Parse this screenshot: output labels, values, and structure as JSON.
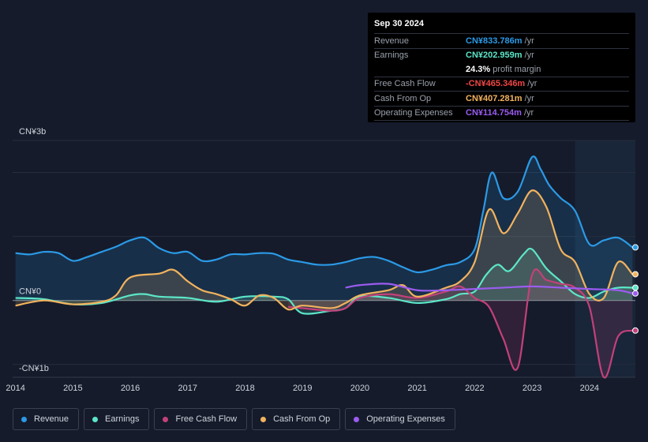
{
  "tooltip": {
    "date": "Sep 30 2024",
    "rows": [
      {
        "label": "Revenue",
        "value": "CN¥833.786m",
        "unit": "/yr",
        "color": "#2b9ae6"
      },
      {
        "label": "Earnings",
        "value": "CN¥202.959m",
        "unit": "/yr",
        "color": "#5ce6c8"
      },
      {
        "label": "",
        "value": "24.3%",
        "unit": "profit margin",
        "color": "#ffffff"
      },
      {
        "label": "Free Cash Flow",
        "value": "-CN¥465.346m",
        "unit": "/yr",
        "color": "#f04646"
      },
      {
        "label": "Cash From Op",
        "value": "CN¥407.281m",
        "unit": "/yr",
        "color": "#f2b35e"
      },
      {
        "label": "Operating Expenses",
        "value": "CN¥114.754m",
        "unit": "/yr",
        "color": "#9b5cf0"
      }
    ]
  },
  "chart_data": {
    "type": "line",
    "title": "",
    "xlabel": "",
    "ylabel": "",
    "y_unit": "CN¥ billions",
    "ylim": [
      -1.2,
      2.5
    ],
    "y_ticks": [
      {
        "value": 2.5,
        "label": "CN¥3b"
      },
      {
        "value": 0,
        "label": "CN¥0"
      },
      {
        "value": -1.2,
        "label": "-CN¥1b"
      }
    ],
    "xlim": [
      2013.95,
      2024.8
    ],
    "x_ticks": [
      {
        "value": 2014,
        "label": "2014"
      },
      {
        "value": 2015,
        "label": "2015"
      },
      {
        "value": 2016,
        "label": "2016"
      },
      {
        "value": 2017,
        "label": "2017"
      },
      {
        "value": 2018,
        "label": "2018"
      },
      {
        "value": 2019,
        "label": "2019"
      },
      {
        "value": 2020,
        "label": "2020"
      },
      {
        "value": 2021,
        "label": "2021"
      },
      {
        "value": 2022,
        "label": "2022"
      },
      {
        "value": 2023,
        "label": "2023"
      },
      {
        "value": 2024,
        "label": "2024"
      }
    ],
    "forecast_start": 2023.75,
    "series": [
      {
        "name": "Revenue",
        "color": "#2b9ae6",
        "fill": true,
        "points": [
          [
            2014,
            0.74
          ],
          [
            2014.25,
            0.72
          ],
          [
            2014.5,
            0.76
          ],
          [
            2014.75,
            0.74
          ],
          [
            2015,
            0.62
          ],
          [
            2015.25,
            0.68
          ],
          [
            2015.5,
            0.76
          ],
          [
            2015.75,
            0.84
          ],
          [
            2016,
            0.94
          ],
          [
            2016.25,
            0.98
          ],
          [
            2016.5,
            0.82
          ],
          [
            2016.75,
            0.74
          ],
          [
            2017,
            0.76
          ],
          [
            2017.25,
            0.62
          ],
          [
            2017.5,
            0.64
          ],
          [
            2017.75,
            0.72
          ],
          [
            2018,
            0.72
          ],
          [
            2018.25,
            0.74
          ],
          [
            2018.5,
            0.73
          ],
          [
            2018.75,
            0.64
          ],
          [
            2019,
            0.6
          ],
          [
            2019.25,
            0.56
          ],
          [
            2019.5,
            0.56
          ],
          [
            2019.75,
            0.6
          ],
          [
            2020,
            0.66
          ],
          [
            2020.25,
            0.68
          ],
          [
            2020.5,
            0.62
          ],
          [
            2020.75,
            0.52
          ],
          [
            2021,
            0.44
          ],
          [
            2021.25,
            0.48
          ],
          [
            2021.5,
            0.55
          ],
          [
            2021.75,
            0.6
          ],
          [
            2022,
            0.8
          ],
          [
            2022.15,
            1.4
          ],
          [
            2022.3,
            2.0
          ],
          [
            2022.5,
            1.6
          ],
          [
            2022.75,
            1.7
          ],
          [
            2023,
            2.24
          ],
          [
            2023.15,
            2.05
          ],
          [
            2023.3,
            1.8
          ],
          [
            2023.5,
            1.6
          ],
          [
            2023.75,
            1.4
          ],
          [
            2024,
            0.88
          ],
          [
            2024.25,
            0.94
          ],
          [
            2024.5,
            0.98
          ],
          [
            2024.75,
            0.83
          ]
        ]
      },
      {
        "name": "Earnings",
        "color": "#5ce6c8",
        "fill": true,
        "points": [
          [
            2014,
            0.04
          ],
          [
            2014.5,
            0.02
          ],
          [
            2015,
            -0.06
          ],
          [
            2015.5,
            -0.04
          ],
          [
            2016,
            0.08
          ],
          [
            2016.25,
            0.1
          ],
          [
            2016.5,
            0.06
          ],
          [
            2017,
            0.04
          ],
          [
            2017.5,
            -0.02
          ],
          [
            2018,
            0.06
          ],
          [
            2018.5,
            0.06
          ],
          [
            2018.75,
            0.02
          ],
          [
            2019,
            -0.2
          ],
          [
            2019.5,
            -0.16
          ],
          [
            2019.75,
            -0.12
          ],
          [
            2020,
            0.06
          ],
          [
            2020.5,
            0.04
          ],
          [
            2021,
            -0.04
          ],
          [
            2021.5,
            0.02
          ],
          [
            2021.75,
            0.1
          ],
          [
            2022,
            0.14
          ],
          [
            2022.2,
            0.4
          ],
          [
            2022.4,
            0.56
          ],
          [
            2022.6,
            0.46
          ],
          [
            2022.85,
            0.72
          ],
          [
            2023,
            0.8
          ],
          [
            2023.25,
            0.5
          ],
          [
            2023.5,
            0.3
          ],
          [
            2023.75,
            0.1
          ],
          [
            2024,
            0.04
          ],
          [
            2024.25,
            0.14
          ],
          [
            2024.5,
            0.2
          ],
          [
            2024.75,
            0.2
          ]
        ]
      },
      {
        "name": "Free Cash Flow",
        "color": "#c2417a",
        "fill": true,
        "points": [
          [
            2018.75,
            -0.1
          ],
          [
            2019,
            -0.12
          ],
          [
            2019.5,
            -0.16
          ],
          [
            2019.75,
            -0.12
          ],
          [
            2020,
            0.04
          ],
          [
            2020.5,
            0.1
          ],
          [
            2021,
            0.04
          ],
          [
            2021.5,
            0.14
          ],
          [
            2021.75,
            0.22
          ],
          [
            2022,
            0.04
          ],
          [
            2022.25,
            -0.1
          ],
          [
            2022.5,
            -0.6
          ],
          [
            2022.75,
            -1.05
          ],
          [
            2023,
            0.4
          ],
          [
            2023.25,
            0.32
          ],
          [
            2023.5,
            0.26
          ],
          [
            2023.75,
            0.2
          ],
          [
            2024,
            -0.1
          ],
          [
            2024.25,
            -1.2
          ],
          [
            2024.5,
            -0.56
          ],
          [
            2024.75,
            -0.47
          ]
        ]
      },
      {
        "name": "Cash From Op",
        "color": "#f2b35e",
        "fill": true,
        "points": [
          [
            2014,
            -0.08
          ],
          [
            2014.5,
            0.0
          ],
          [
            2015,
            -0.06
          ],
          [
            2015.5,
            -0.02
          ],
          [
            2015.75,
            0.08
          ],
          [
            2016,
            0.36
          ],
          [
            2016.5,
            0.42
          ],
          [
            2016.75,
            0.48
          ],
          [
            2017,
            0.3
          ],
          [
            2017.25,
            0.16
          ],
          [
            2017.5,
            0.1
          ],
          [
            2017.75,
            0.02
          ],
          [
            2018,
            -0.08
          ],
          [
            2018.25,
            0.08
          ],
          [
            2018.5,
            0.04
          ],
          [
            2018.75,
            -0.14
          ],
          [
            2019,
            -0.08
          ],
          [
            2019.5,
            -0.12
          ],
          [
            2019.75,
            -0.04
          ],
          [
            2020,
            0.08
          ],
          [
            2020.5,
            0.16
          ],
          [
            2020.75,
            0.24
          ],
          [
            2021,
            0.06
          ],
          [
            2021.5,
            0.2
          ],
          [
            2021.75,
            0.3
          ],
          [
            2022,
            0.6
          ],
          [
            2022.25,
            1.42
          ],
          [
            2022.5,
            1.05
          ],
          [
            2022.75,
            1.36
          ],
          [
            2023,
            1.72
          ],
          [
            2023.25,
            1.46
          ],
          [
            2023.5,
            0.8
          ],
          [
            2023.75,
            0.6
          ],
          [
            2024,
            0.1
          ],
          [
            2024.25,
            0.04
          ],
          [
            2024.5,
            0.6
          ],
          [
            2024.75,
            0.41
          ]
        ]
      },
      {
        "name": "Operating Expenses",
        "color": "#9b5cf0",
        "fill": false,
        "points": [
          [
            2019.75,
            0.2
          ],
          [
            2020,
            0.24
          ],
          [
            2020.5,
            0.26
          ],
          [
            2021,
            0.16
          ],
          [
            2021.5,
            0.16
          ],
          [
            2022,
            0.18
          ],
          [
            2022.5,
            0.2
          ],
          [
            2023,
            0.22
          ],
          [
            2023.5,
            0.2
          ],
          [
            2024,
            0.18
          ],
          [
            2024.5,
            0.16
          ],
          [
            2024.75,
            0.11
          ]
        ]
      }
    ]
  },
  "legend": [
    {
      "name": "Revenue",
      "color": "#2b9ae6"
    },
    {
      "name": "Earnings",
      "color": "#5ce6c8"
    },
    {
      "name": "Free Cash Flow",
      "color": "#c2417a"
    },
    {
      "name": "Cash From Op",
      "color": "#f2b35e"
    },
    {
      "name": "Operating Expenses",
      "color": "#9b5cf0"
    }
  ]
}
